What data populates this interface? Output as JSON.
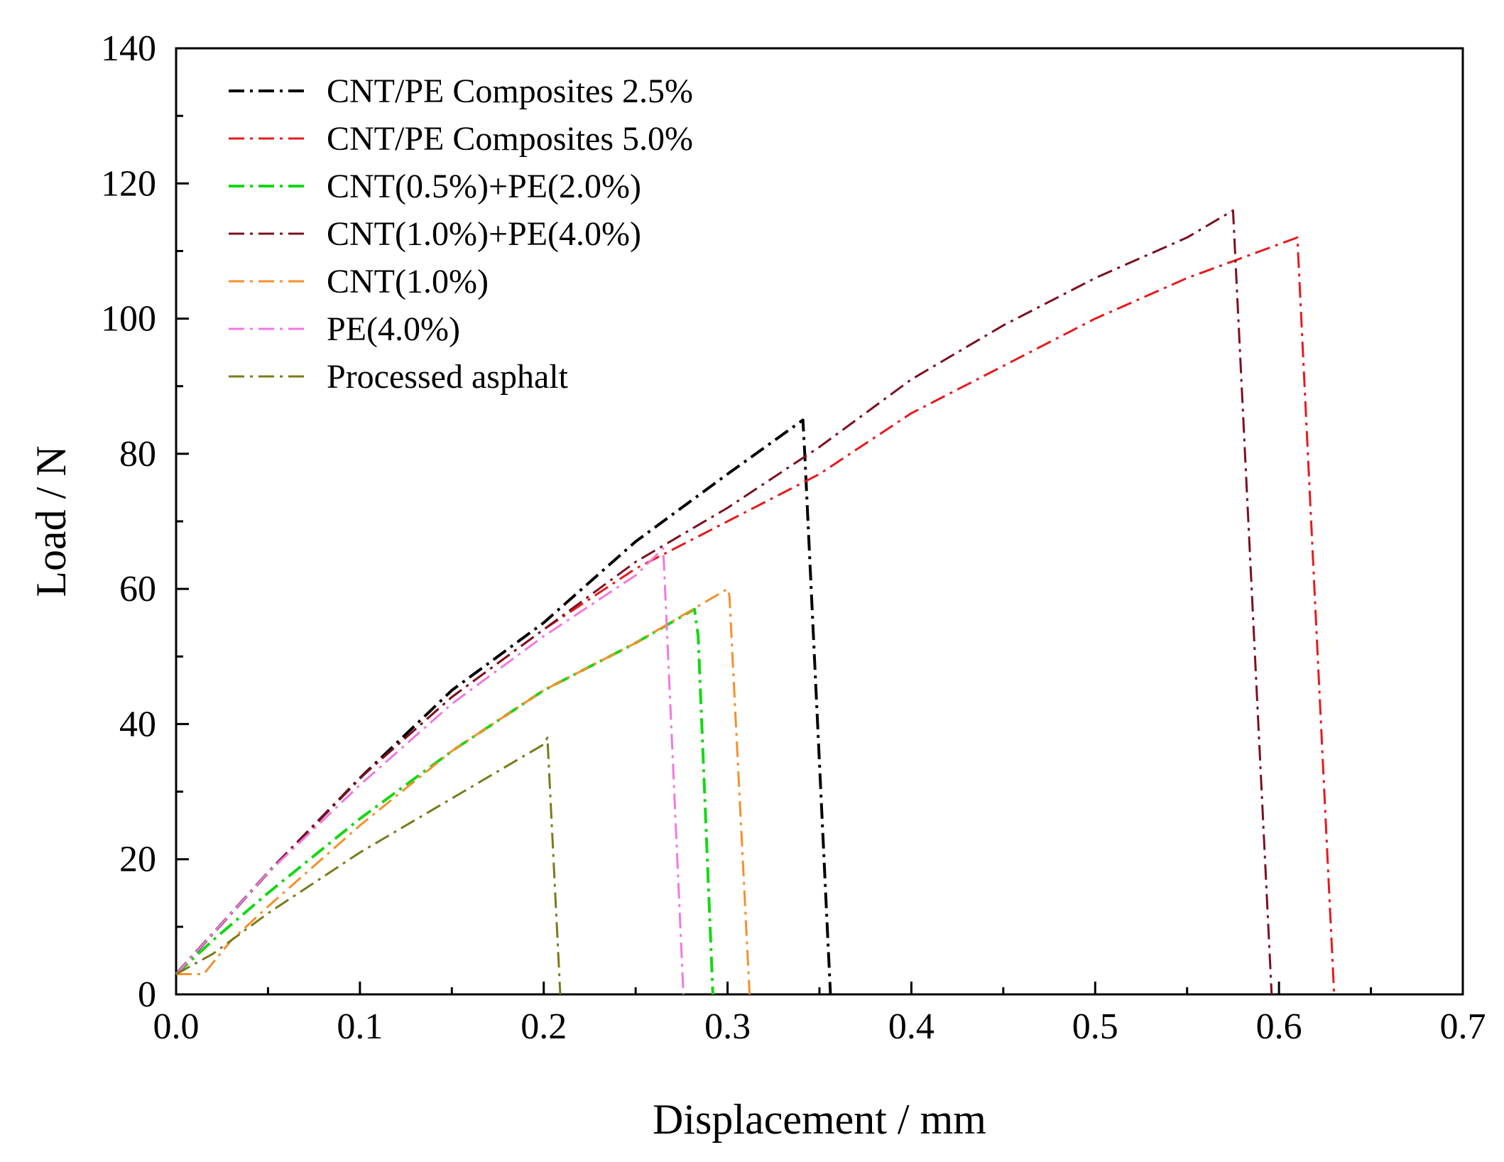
{
  "chart_data": {
    "type": "line",
    "title": "",
    "xlabel": "Displacement / mm",
    "ylabel": "Load / N",
    "xlim": [
      0.0,
      0.7
    ],
    "ylim": [
      0,
      140
    ],
    "xticks": [
      0.0,
      0.1,
      0.2,
      0.3,
      0.4,
      0.5,
      0.6,
      0.7
    ],
    "xtick_labels": [
      "0.0",
      "0.1",
      "0.2",
      "0.3",
      "0.4",
      "0.5",
      "0.6",
      "0.7"
    ],
    "yticks": [
      0,
      20,
      40,
      60,
      80,
      100,
      120,
      140
    ],
    "ytick_labels": [
      "0",
      "20",
      "40",
      "60",
      "80",
      "100",
      "120",
      "140"
    ],
    "grid": false,
    "legend_position": "top-left",
    "series": [
      {
        "name": "CNT/PE Composites 2.5%",
        "color": "#000000",
        "dash": "dash-dot",
        "x": [
          0.0,
          0.02,
          0.05,
          0.1,
          0.15,
          0.2,
          0.25,
          0.3,
          0.341,
          0.342,
          0.356
        ],
        "y": [
          3,
          9,
          18,
          32,
          45,
          55,
          67,
          77,
          85,
          80,
          0
        ]
      },
      {
        "name": "CNT/PE Composites 5.0%",
        "color": "#e8191c",
        "dash": "dash-dot",
        "x": [
          0.0,
          0.02,
          0.05,
          0.1,
          0.15,
          0.2,
          0.25,
          0.3,
          0.35,
          0.4,
          0.45,
          0.5,
          0.55,
          0.61,
          0.63
        ],
        "y": [
          3,
          9,
          18,
          32,
          44,
          54,
          63,
          70,
          77,
          86,
          93,
          100,
          106,
          112,
          0
        ]
      },
      {
        "name": "CNT(0.5%)+PE(2.0%)",
        "color": "#13d813",
        "dash": "dash-dot",
        "x": [
          0.0,
          0.02,
          0.05,
          0.1,
          0.15,
          0.2,
          0.25,
          0.282,
          0.284,
          0.292
        ],
        "y": [
          3,
          8,
          15,
          26,
          36,
          45,
          52,
          57,
          53,
          0
        ]
      },
      {
        "name": "CNT(1.0%)+PE(4.0%)",
        "color": "#7a1020",
        "dash": "dash-dot",
        "x": [
          0.0,
          0.02,
          0.05,
          0.1,
          0.15,
          0.2,
          0.25,
          0.3,
          0.35,
          0.4,
          0.45,
          0.5,
          0.55,
          0.575,
          0.596
        ],
        "y": [
          3,
          9,
          18,
          32,
          44,
          54,
          64,
          72,
          81,
          91,
          99,
          106,
          112,
          116,
          0
        ]
      },
      {
        "name": "CNT(1.0%)",
        "color": "#f5902a",
        "dash": "dash-dot",
        "x": [
          0.0,
          0.015,
          0.03,
          0.05,
          0.1,
          0.15,
          0.2,
          0.25,
          0.3,
          0.301,
          0.312
        ],
        "y": [
          3,
          3,
          8,
          13,
          25,
          36,
          45,
          52,
          60,
          59,
          0
        ]
      },
      {
        "name": "PE(4.0%)",
        "color": "#f078e0",
        "dash": "dash-dot",
        "x": [
          0.0,
          0.02,
          0.05,
          0.1,
          0.15,
          0.2,
          0.25,
          0.265,
          0.276
        ],
        "y": [
          3,
          9,
          18,
          31,
          43,
          53,
          62,
          66,
          0
        ]
      },
      {
        "name": "Processed asphalt",
        "color": "#7a7a1a",
        "dash": "dash-dot",
        "x": [
          0.0,
          0.02,
          0.05,
          0.1,
          0.15,
          0.2,
          0.202,
          0.209
        ],
        "y": [
          3,
          6,
          12,
          21,
          29,
          37,
          38,
          0
        ]
      }
    ]
  }
}
